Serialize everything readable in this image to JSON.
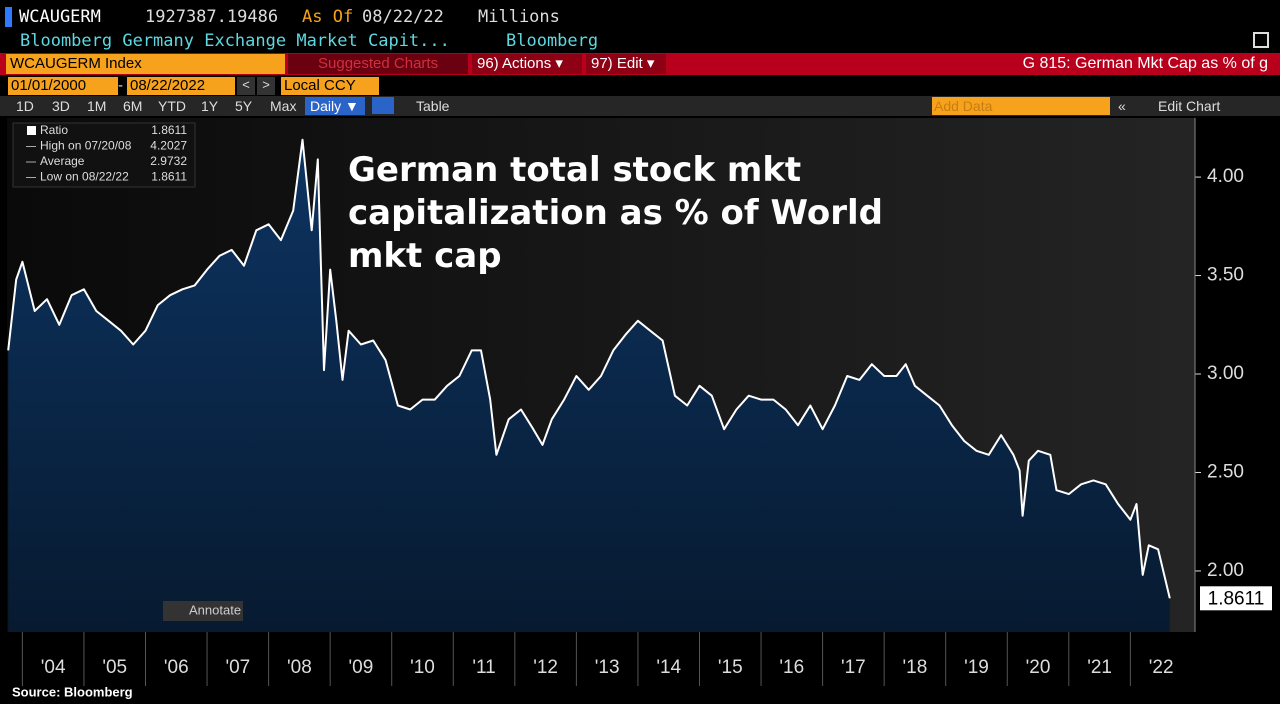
{
  "header": {
    "ticker": "WCAUGERM",
    "last_value": "1927387.19486",
    "as_of_label": "As Of",
    "as_of_date": "08/22/22",
    "units": "Millions",
    "description": "Bloomberg Germany Exchange Market Capit...",
    "source_name": "Bloomberg"
  },
  "toolbar": {
    "security": "WCAUGERM Index",
    "suggested": "Suggested Charts",
    "actions": "96) Actions ▾",
    "edit": "97) Edit ▾",
    "page_title": "G 815: German Mkt Cap as % of g",
    "start_date": "01/01/2000",
    "date_separator": "-",
    "end_date": "08/22/2022",
    "currency": "Local CCY",
    "ranges": [
      "1D",
      "3D",
      "1M",
      "6M",
      "YTD",
      "1Y",
      "5Y",
      "Max"
    ],
    "frequency": "Daily ▼",
    "table": "Table",
    "add_data": "Add Data",
    "edit_chart": "Edit Chart",
    "annotate": "Annotate"
  },
  "legend_panel": [
    {
      "label": "Ratio",
      "value": "1.8611"
    },
    {
      "label": "High on 07/20/08",
      "value": "4.2027"
    },
    {
      "label": "Average",
      "value": "2.9732"
    },
    {
      "label": "Low on 08/22/22",
      "value": "1.8611"
    }
  ],
  "source": "Source: Bloomberg",
  "chart_data": {
    "type": "area",
    "title": [
      "German total stock mkt",
      "capitalization as % of World",
      "mkt cap"
    ],
    "x": [
      2003.77,
      2003.9,
      2004.0,
      2004.2,
      2004.4,
      2004.6,
      2004.8,
      2005.0,
      2005.2,
      2005.4,
      2005.6,
      2005.8,
      2006.0,
      2006.2,
      2006.4,
      2006.6,
      2006.8,
      2007.0,
      2007.2,
      2007.4,
      2007.6,
      2007.8,
      2008.0,
      2008.2,
      2008.4,
      2008.55,
      2008.7,
      2008.8,
      2008.9,
      2009.0,
      2009.1,
      2009.2,
      2009.3,
      2009.5,
      2009.7,
      2009.9,
      2010.1,
      2010.3,
      2010.5,
      2010.7,
      2010.9,
      2011.1,
      2011.3,
      2011.45,
      2011.6,
      2011.7,
      2011.9,
      2012.1,
      2012.3,
      2012.45,
      2012.6,
      2012.8,
      2013.0,
      2013.2,
      2013.4,
      2013.6,
      2013.8,
      2014.0,
      2014.2,
      2014.4,
      2014.6,
      2014.8,
      2015.0,
      2015.2,
      2015.4,
      2015.6,
      2015.8,
      2016.0,
      2016.2,
      2016.4,
      2016.6,
      2016.8,
      2017.0,
      2017.2,
      2017.4,
      2017.6,
      2017.8,
      2018.0,
      2018.2,
      2018.35,
      2018.5,
      2018.7,
      2018.9,
      2019.1,
      2019.3,
      2019.5,
      2019.7,
      2019.9,
      2020.1,
      2020.2,
      2020.25,
      2020.35,
      2020.5,
      2020.7,
      2020.8,
      2021.0,
      2021.2,
      2021.4,
      2021.6,
      2021.8,
      2022.0,
      2022.1,
      2022.2,
      2022.3,
      2022.45,
      2022.55,
      2022.64
    ],
    "series": [
      {
        "name": "Ratio",
        "color": "#ffffff",
        "fill": "#0b2b52",
        "values": [
          3.12,
          3.48,
          3.57,
          3.32,
          3.38,
          3.25,
          3.4,
          3.43,
          3.32,
          3.27,
          3.22,
          3.15,
          3.22,
          3.35,
          3.4,
          3.43,
          3.45,
          3.53,
          3.6,
          3.63,
          3.55,
          3.73,
          3.76,
          3.68,
          3.83,
          4.19,
          3.73,
          4.09,
          3.02,
          3.53,
          3.27,
          2.97,
          3.22,
          3.15,
          3.17,
          3.07,
          2.84,
          2.82,
          2.87,
          2.87,
          2.94,
          2.99,
          3.12,
          3.12,
          2.87,
          2.59,
          2.77,
          2.82,
          2.72,
          2.64,
          2.77,
          2.87,
          2.99,
          2.92,
          2.99,
          3.12,
          3.2,
          3.27,
          3.22,
          3.17,
          2.89,
          2.84,
          2.94,
          2.89,
          2.72,
          2.82,
          2.89,
          2.87,
          2.87,
          2.82,
          2.74,
          2.84,
          2.72,
          2.84,
          2.99,
          2.97,
          3.05,
          2.99,
          2.99,
          3.05,
          2.94,
          2.89,
          2.84,
          2.74,
          2.66,
          2.61,
          2.59,
          2.69,
          2.59,
          2.51,
          2.28,
          2.56,
          2.61,
          2.59,
          2.41,
          2.39,
          2.44,
          2.46,
          2.44,
          2.34,
          2.26,
          2.34,
          1.98,
          2.13,
          2.11,
          1.98,
          1.8611
        ]
      }
    ],
    "xlim": [
      2003.75,
      2023.05
    ],
    "xticks": [
      {
        "value": 2004,
        "label": "'04"
      },
      {
        "value": 2005,
        "label": "'05"
      },
      {
        "value": 2006,
        "label": "'06"
      },
      {
        "value": 2007,
        "label": "'07"
      },
      {
        "value": 2008,
        "label": "'08"
      },
      {
        "value": 2009,
        "label": "'09"
      },
      {
        "value": 2010,
        "label": "'10"
      },
      {
        "value": 2011,
        "label": "'11"
      },
      {
        "value": 2012,
        "label": "'12"
      },
      {
        "value": 2013,
        "label": "'13"
      },
      {
        "value": 2014,
        "label": "'14"
      },
      {
        "value": 2015,
        "label": "'15"
      },
      {
        "value": 2016,
        "label": "'16"
      },
      {
        "value": 2017,
        "label": "'17"
      },
      {
        "value": 2018,
        "label": "'18"
      },
      {
        "value": 2019,
        "label": "'19"
      },
      {
        "value": 2020,
        "label": "'20"
      },
      {
        "value": 2021,
        "label": "'21"
      },
      {
        "value": 2022,
        "label": "'22"
      }
    ],
    "ylim": [
      1.69,
      4.3
    ],
    "yticks": [
      {
        "value": 2,
        "label": "2.00"
      },
      {
        "value": 2.5,
        "label": "2.50"
      },
      {
        "value": 3,
        "label": "3.00"
      },
      {
        "value": 3.5,
        "label": "3.50"
      },
      {
        "value": 4,
        "label": "4.00"
      }
    ]
  }
}
